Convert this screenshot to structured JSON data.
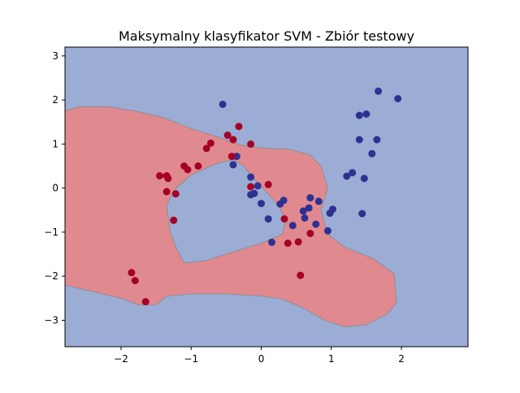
{
  "chart_data": {
    "type": "scatter",
    "title": "Maksymalny klasyfikator SVM - Zbiór testowy",
    "xlabel": "",
    "ylabel": "",
    "xlim": [
      -2.8,
      2.95
    ],
    "ylim": [
      -3.6,
      3.2
    ],
    "xticks": [
      -2,
      -1,
      0,
      1,
      2
    ],
    "xtick_labels": [
      "−2",
      "−1",
      "0",
      "1",
      "2"
    ],
    "yticks": [
      -3,
      -2,
      -1,
      0,
      1,
      2,
      3
    ],
    "ytick_labels": [
      "−3",
      "−2",
      "−1",
      "0",
      "1",
      "2",
      "3"
    ],
    "grid": false,
    "legend": false,
    "colors": {
      "region_class_0": "#9badd5",
      "region_class_1": "#e08a8f",
      "class_0": "#2e3192",
      "class_1": "#a50026",
      "boundary": "#888888"
    },
    "decision_boundary": [
      {
        "class": 1,
        "polygon": [
          [
            -2.8,
            1.75
          ],
          [
            -2.6,
            1.85
          ],
          [
            -2.2,
            1.85
          ],
          [
            -1.8,
            1.75
          ],
          [
            -1.4,
            1.6
          ],
          [
            -1.0,
            1.35
          ],
          [
            -0.6,
            1.15
          ],
          [
            -0.3,
            0.98
          ],
          [
            -0.1,
            0.93
          ],
          [
            0.1,
            0.9
          ],
          [
            0.4,
            0.88
          ],
          [
            0.7,
            0.75
          ],
          [
            0.85,
            0.5
          ],
          [
            0.95,
            0.0
          ],
          [
            0.85,
            -0.5
          ],
          [
            0.95,
            -1.05
          ],
          [
            1.2,
            -1.35
          ],
          [
            1.6,
            -1.6
          ],
          [
            1.9,
            -1.95
          ],
          [
            1.93,
            -2.6
          ],
          [
            1.8,
            -2.85
          ],
          [
            1.5,
            -3.1
          ],
          [
            1.2,
            -3.15
          ],
          [
            0.9,
            -3.0
          ],
          [
            0.6,
            -2.72
          ],
          [
            0.3,
            -2.52
          ],
          [
            0.0,
            -2.45
          ],
          [
            -0.5,
            -2.4
          ],
          [
            -1.0,
            -2.4
          ],
          [
            -1.35,
            -2.45
          ],
          [
            -1.5,
            -2.65
          ],
          [
            -1.75,
            -2.65
          ],
          [
            -2.0,
            -2.5
          ],
          [
            -2.4,
            -2.35
          ],
          [
            -2.8,
            -2.2
          ]
        ]
      },
      {
        "class": 0,
        "polygon": [
          [
            -1.35,
            -0.4
          ],
          [
            -1.25,
            -0.05
          ],
          [
            -1.0,
            0.3
          ],
          [
            -0.65,
            0.55
          ],
          [
            -0.4,
            0.65
          ],
          [
            -0.25,
            0.5
          ],
          [
            -0.1,
            0.2
          ],
          [
            0.05,
            -0.05
          ],
          [
            0.25,
            -0.4
          ],
          [
            0.35,
            -0.75
          ],
          [
            0.3,
            -1.05
          ],
          [
            0.0,
            -1.25
          ],
          [
            -0.4,
            -1.45
          ],
          [
            -0.8,
            -1.65
          ],
          [
            -1.1,
            -1.7
          ],
          [
            -1.2,
            -1.4
          ],
          [
            -1.3,
            -1.0
          ]
        ]
      }
    ],
    "series": [
      {
        "class": 0,
        "points": [
          [
            -0.55,
            1.9
          ],
          [
            -0.35,
            0.72
          ],
          [
            -0.4,
            0.53
          ],
          [
            -0.15,
            0.25
          ],
          [
            -0.15,
            -0.15
          ],
          [
            -0.1,
            -0.12
          ],
          [
            -0.05,
            0.05
          ],
          [
            0.0,
            -0.35
          ],
          [
            0.1,
            -0.7
          ],
          [
            0.15,
            -1.23
          ],
          [
            0.27,
            -0.36
          ],
          [
            0.32,
            -0.28
          ],
          [
            0.45,
            -0.85
          ],
          [
            0.6,
            -0.52
          ],
          [
            0.62,
            -0.68
          ],
          [
            0.68,
            -0.45
          ],
          [
            0.7,
            -0.22
          ],
          [
            0.78,
            -0.82
          ],
          [
            0.82,
            -0.3
          ],
          [
            0.95,
            -0.97
          ],
          [
            0.98,
            -0.57
          ],
          [
            1.02,
            -0.48
          ],
          [
            1.22,
            0.27
          ],
          [
            1.3,
            0.35
          ],
          [
            1.4,
            1.65
          ],
          [
            1.4,
            1.1
          ],
          [
            1.44,
            -0.58
          ],
          [
            1.47,
            0.22
          ],
          [
            1.5,
            1.68
          ],
          [
            1.58,
            0.78
          ],
          [
            1.65,
            1.1
          ],
          [
            1.67,
            2.2
          ],
          [
            1.95,
            2.03
          ]
        ]
      },
      {
        "class": 1,
        "points": [
          [
            -1.85,
            -1.92
          ],
          [
            -1.8,
            -2.1
          ],
          [
            -1.65,
            -2.58
          ],
          [
            -1.45,
            0.28
          ],
          [
            -1.35,
            0.28
          ],
          [
            -1.35,
            -0.08
          ],
          [
            -1.33,
            0.22
          ],
          [
            -1.25,
            -0.73
          ],
          [
            -1.22,
            -0.13
          ],
          [
            -1.1,
            0.5
          ],
          [
            -1.05,
            0.42
          ],
          [
            -0.9,
            0.5
          ],
          [
            -0.78,
            0.9
          ],
          [
            -0.72,
            1.02
          ],
          [
            -0.48,
            1.2
          ],
          [
            -0.4,
            1.1
          ],
          [
            -0.42,
            0.72
          ],
          [
            -0.32,
            1.4
          ],
          [
            -0.15,
            1.0
          ],
          [
            -0.15,
            0.03
          ],
          [
            0.1,
            0.08
          ],
          [
            0.33,
            -0.7
          ],
          [
            0.38,
            -1.25
          ],
          [
            0.53,
            -1.22
          ],
          [
            0.56,
            -1.98
          ],
          [
            0.7,
            -1.03
          ]
        ]
      }
    ]
  }
}
